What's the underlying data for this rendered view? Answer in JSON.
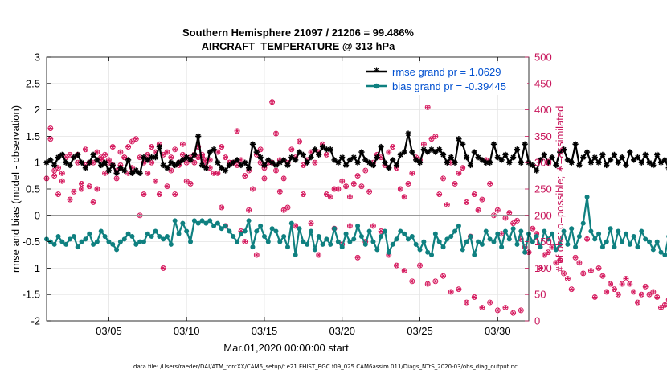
{
  "chart_data": {
    "type": "line",
    "title": "Southern Hemisphere 21097 / 21206 = 99.486%",
    "subtitle": "AIRCRAFT_TEMPERATURE @ 313 hPa",
    "xlabel": "Mar.01,2020 00:00:00 start",
    "ylabel_left": "rmse and bias (model - observation)",
    "ylabel_right": "# of obs: o=possible; ∗=assimilated",
    "footnote": "data file: /Users/raeder/DAI/ATM_forcXX/CAM6_setup/f.e21.FHIST_BGC.f09_025.CAM6assim.011/Diags_NTrS_2020-03/obs_diag_output.nc",
    "x_tick_labels": [
      "03/05",
      "03/10",
      "03/15",
      "03/20",
      "03/25",
      "03/30"
    ],
    "x_tick_days": [
      5,
      10,
      15,
      20,
      25,
      30
    ],
    "xlim": [
      1,
      32
    ],
    "ylim_left": [
      -2,
      3
    ],
    "ylim_right": [
      0,
      500
    ],
    "y_ticks_left": [
      "-2",
      "-1.5",
      "-1",
      "-0.5",
      "0",
      "0.5",
      "1",
      "1.5",
      "2",
      "2.5",
      "3"
    ],
    "y_ticks_right": [
      "0",
      "50",
      "100",
      "150",
      "200",
      "250",
      "300",
      "350",
      "400",
      "450",
      "500"
    ],
    "legend_position": "top-right",
    "colors": {
      "rmse": "#000000",
      "bias": "#0f8080",
      "obs": "#d4145a",
      "right_axis": "#c8145a",
      "legend_text": "#0050d0",
      "zero_line": "#999999"
    },
    "start_day": 1,
    "step_days": 0.25,
    "series": [
      {
        "name": "rmse grand pr = 1.0629",
        "values": [
          1.0,
          1.05,
          0.95,
          1.1,
          1.15,
          1.0,
          0.95,
          1.1,
          1.15,
          1.0,
          0.9,
          1.0,
          1.15,
          1.05,
          0.95,
          1.0,
          0.85,
          0.95,
          0.8,
          0.9,
          0.85,
          1.05,
          0.8,
          0.85,
          0.8,
          1.1,
          1.05,
          1.1,
          1.1,
          1.3,
          0.95,
          0.9,
          1.0,
          0.95,
          1.0,
          1.05,
          1.1,
          1.05,
          1.15,
          1.5,
          0.95,
          0.9,
          1.2,
          1.25,
          1.0,
          0.9,
          0.85,
          0.95,
          1.0,
          1.05,
          0.95,
          1.0,
          0.9,
          1.35,
          1.2,
          1.1,
          0.95,
          1.05,
          1.0,
          0.95,
          1.0,
          1.05,
          0.95,
          1.1,
          1.05,
          1.2,
          1.15,
          1.0,
          1.1,
          1.25,
          1.15,
          1.3,
          1.25,
          1.25,
          1.05,
          1.0,
          1.1,
          0.95,
          1.05,
          1.1,
          1.0,
          1.2,
          1.05,
          1.0,
          0.95,
          1.1,
          1.3,
          1.0,
          0.9,
          1.05,
          0.95,
          1.15,
          1.2,
          1.55,
          1.2,
          1.05,
          1.0,
          1.25,
          1.2,
          1.25,
          1.2,
          1.25,
          1.15,
          1.0,
          1.1,
          1.0,
          1.45,
          1.35,
          1.1,
          0.95,
          1.2,
          1.1,
          1.05,
          1.0,
          1.0,
          1.35,
          1.1,
          1.05,
          1.15,
          1.0,
          1.1,
          1.25,
          1.0,
          1.35,
          1.0,
          0.95,
          0.85,
          1.05,
          1.15,
          1.0,
          1.1,
          0.95,
          1.2,
          1.25,
          1.05,
          1.0,
          1.35,
          0.95,
          1.1,
          1.2,
          1.0,
          1.1,
          1.0,
          1.15,
          0.95,
          1.05,
          1.15,
          1.0,
          1.1,
          0.95,
          1.2,
          1.05,
          1.1,
          1.0,
          1.15,
          1.0,
          0.95,
          1.15,
          1.0,
          1.05,
          0.9,
          1.15,
          1.05,
          0.95,
          1.0,
          1.05,
          0.9,
          1.2,
          1.1,
          1.0,
          1.15,
          0.95,
          1.0,
          1.05,
          1.0,
          1.1,
          1.05,
          1.2,
          0.9,
          1.25,
          1.0,
          1.05,
          1.2,
          0.9,
          1.1,
          1.15,
          1.25,
          0.95,
          1.0,
          1.15,
          1.1,
          0.85,
          1.05,
          1.0,
          1.15,
          1.0,
          1.05,
          0.9,
          1.1,
          1.0,
          1.05,
          1.55
        ]
      },
      {
        "name": "bias grand pr = -0.39445",
        "values": [
          -0.45,
          -0.5,
          -0.55,
          -0.4,
          -0.5,
          -0.55,
          -0.45,
          -0.4,
          -0.6,
          -0.5,
          -0.45,
          -0.35,
          -0.55,
          -0.5,
          -0.3,
          -0.4,
          -0.5,
          -0.55,
          -0.65,
          -0.5,
          -0.45,
          -0.35,
          -0.4,
          -0.55,
          -0.5,
          -0.5,
          -0.35,
          -0.4,
          -0.3,
          -0.4,
          -0.45,
          -0.4,
          -0.55,
          -0.1,
          -0.35,
          -0.15,
          -0.3,
          -0.5,
          -0.1,
          -0.15,
          -0.1,
          -0.15,
          -0.1,
          -0.2,
          -0.15,
          -0.25,
          -0.2,
          -0.3,
          -0.4,
          -0.5,
          -0.35,
          -0.3,
          -0.1,
          -0.6,
          -0.3,
          -0.2,
          -0.4,
          -0.5,
          -0.25,
          -0.3,
          -0.5,
          -0.4,
          -0.6,
          -0.15,
          -0.75,
          -0.25,
          -0.5,
          -0.55,
          -0.3,
          -0.65,
          -0.4,
          -0.55,
          -0.45,
          -0.55,
          -0.25,
          -0.5,
          -0.6,
          -0.35,
          -0.5,
          -0.45,
          -0.2,
          -0.4,
          -0.55,
          -0.3,
          -0.5,
          -0.65,
          -0.4,
          -0.3,
          -0.7,
          -0.55,
          -0.45,
          -0.3,
          -0.35,
          -0.45,
          -0.4,
          -0.55,
          -0.65,
          -0.5,
          -0.7,
          -0.75,
          -0.35,
          -0.5,
          -0.6,
          -0.45,
          -0.4,
          -0.3,
          -0.2,
          -0.65,
          -0.5,
          -0.4,
          -0.75,
          -0.5,
          -0.55,
          -0.3,
          -0.45,
          -0.5,
          -0.35,
          -0.6,
          -0.3,
          -0.45,
          -0.25,
          -0.55,
          -0.3,
          -0.7,
          -0.35,
          -0.5,
          -0.4,
          -0.6,
          -0.3,
          -0.45,
          -0.35,
          -0.65,
          -0.55,
          -0.3,
          -0.55,
          -0.25,
          -0.6,
          -0.4,
          -0.15,
          0.35,
          -0.3,
          -0.45,
          -0.35,
          -0.6,
          -0.5,
          -0.25,
          -0.6,
          -0.3,
          -0.5,
          -0.35,
          -0.55,
          -0.4,
          -0.6,
          -0.3,
          -0.45,
          -0.5,
          -0.65,
          -0.5,
          -0.7,
          -0.75,
          -0.4,
          -0.1,
          -0.35,
          -0.45,
          -0.15,
          -0.55,
          -0.3,
          -0.45,
          -0.5,
          -0.6,
          -0.35,
          -0.5,
          -0.3,
          -0.45,
          -0.2,
          -0.5,
          -0.35,
          -0.25,
          -0.35,
          -0.5,
          -0.3,
          -0.45,
          -0.55,
          -0.45,
          -0.3,
          -0.4,
          -0.8,
          -0.3,
          -0.5,
          -0.55,
          -0.6,
          -0.45,
          0.65,
          -0.5,
          -0.3,
          -0.55,
          -0.2,
          -0.45,
          -0.5,
          -0.6,
          -0.7,
          -0.5,
          -0.4,
          -0.2,
          -0.45,
          -0.3,
          -0.4,
          -0.7,
          -0.45,
          -0.55,
          -0.55,
          -1.25
        ]
      }
    ],
    "obs_counts": [
      270,
      365,
      285,
      290,
      280,
      310,
      315,
      245,
      300,
      260,
      295,
      255,
      225,
      250,
      310,
      315,
      305,
      295,
      270,
      320,
      310,
      330,
      340,
      345,
      310,
      300,
      315,
      330,
      320,
      335,
      315,
      320,
      310,
      325,
      295,
      335,
      300,
      310,
      315,
      330,
      310,
      305,
      290,
      280,
      320,
      330,
      310,
      300,
      300,
      295,
      305,
      275,
      285,
      250,
      315,
      325,
      290,
      300,
      300,
      285,
      305,
      270,
      300,
      325,
      310,
      340,
      295,
      305,
      320,
      300,
      320,
      335,
      315,
      235,
      250,
      250,
      265,
      255,
      235,
      260,
      275,
      255,
      285,
      245,
      300,
      315,
      310,
      295,
      320,
      330,
      290,
      250,
      235,
      260,
      280,
      310,
      305,
      335,
      405,
      345,
      350,
      240,
      270,
      220,
      300,
      260,
      280,
      290,
      225,
      160,
      240,
      210,
      230,
      305,
      260,
      200,
      210,
      165,
      195,
      205,
      185,
      190,
      155,
      140,
      130,
      175,
      165,
      100,
      125,
      130,
      140,
      110,
      115,
      90,
      80,
      60,
      120,
      110,
      90,
      155,
      95,
      45,
      100,
      85,
      55,
      70,
      60,
      50,
      70,
      80,
      70,
      55,
      35,
      50,
      65,
      50,
      55,
      45,
      25,
      30,
      40,
      60,
      20,
      30,
      45,
      40,
      20,
      30,
      15,
      5,
      25,
      10,
      0,
      20,
      30,
      15,
      25,
      35,
      10,
      20,
      5,
      15,
      25,
      35,
      20,
      10,
      30,
      25,
      15,
      40,
      5,
      20,
      10,
      25,
      30,
      15,
      5,
      30,
      20,
      10,
      25,
      15,
      35,
      20,
      5,
      0
    ],
    "obs_scatter": [
      {
        "d": 1.25,
        "v": 345
      },
      {
        "d": 1.5,
        "v": 275
      },
      {
        "d": 1.75,
        "v": 240
      },
      {
        "d": 2.0,
        "v": 265
      },
      {
        "d": 2.5,
        "v": 230
      },
      {
        "d": 3.0,
        "v": 315
      },
      {
        "d": 3.25,
        "v": 250
      },
      {
        "d": 3.5,
        "v": 325
      },
      {
        "d": 3.75,
        "v": 300
      },
      {
        "d": 4.0,
        "v": 300
      },
      {
        "d": 4.25,
        "v": 320
      },
      {
        "d": 4.5,
        "v": 305
      },
      {
        "d": 4.75,
        "v": 280
      },
      {
        "d": 5.0,
        "v": 300
      },
      {
        "d": 5.25,
        "v": 330
      },
      {
        "d": 5.5,
        "v": 285
      },
      {
        "d": 5.75,
        "v": 295
      },
      {
        "d": 6.0,
        "v": 310
      },
      {
        "d": 6.25,
        "v": 280
      },
      {
        "d": 6.5,
        "v": 290
      },
      {
        "d": 7.0,
        "v": 200
      },
      {
        "d": 7.25,
        "v": 240
      },
      {
        "d": 7.5,
        "v": 280
      },
      {
        "d": 7.75,
        "v": 300
      },
      {
        "d": 8.0,
        "v": 265
      },
      {
        "d": 8.25,
        "v": 240
      },
      {
        "d": 8.5,
        "v": 100
      },
      {
        "d": 8.75,
        "v": 255
      },
      {
        "d": 9.0,
        "v": 285
      },
      {
        "d": 9.25,
        "v": 240
      },
      {
        "d": 9.5,
        "v": 300
      },
      {
        "d": 9.75,
        "v": 315
      },
      {
        "d": 10.0,
        "v": 265
      },
      {
        "d": 10.25,
        "v": 260
      },
      {
        "d": 10.5,
        "v": 300
      },
      {
        "d": 10.75,
        "v": 310
      },
      {
        "d": 11.0,
        "v": 315
      },
      {
        "d": 11.25,
        "v": 300
      },
      {
        "d": 11.5,
        "v": 305
      },
      {
        "d": 12.0,
        "v": 280
      },
      {
        "d": 12.25,
        "v": 215
      },
      {
        "d": 12.5,
        "v": 180
      },
      {
        "d": 12.75,
        "v": 300
      },
      {
        "d": 13.25,
        "v": 360
      },
      {
        "d": 13.5,
        "v": 170
      },
      {
        "d": 13.75,
        "v": 150
      },
      {
        "d": 14.0,
        "v": 210
      },
      {
        "d": 14.5,
        "v": 125
      },
      {
        "d": 14.75,
        "v": 300
      },
      {
        "d": 15.0,
        "v": 270
      },
      {
        "d": 15.5,
        "v": 415
      },
      {
        "d": 15.75,
        "v": 355
      },
      {
        "d": 16.0,
        "v": 245
      },
      {
        "d": 16.25,
        "v": 210
      },
      {
        "d": 16.5,
        "v": 215
      },
      {
        "d": 17.0,
        "v": 180
      },
      {
        "d": 17.5,
        "v": 240
      },
      {
        "d": 18.0,
        "v": 185
      },
      {
        "d": 18.5,
        "v": 125
      },
      {
        "d": 19.0,
        "v": 240
      },
      {
        "d": 19.5,
        "v": 175
      },
      {
        "d": 20.0,
        "v": 145
      },
      {
        "d": 20.5,
        "v": 180
      },
      {
        "d": 21.0,
        "v": 120
      },
      {
        "d": 21.5,
        "v": 150
      },
      {
        "d": 22.0,
        "v": 180
      },
      {
        "d": 22.5,
        "v": 170
      },
      {
        "d": 23.0,
        "v": 125
      },
      {
        "d": 23.5,
        "v": 105
      },
      {
        "d": 24.0,
        "v": 95
      },
      {
        "d": 24.5,
        "v": 75
      },
      {
        "d": 25.0,
        "v": 105
      },
      {
        "d": 25.5,
        "v": 70
      },
      {
        "d": 26.0,
        "v": 75
      },
      {
        "d": 26.5,
        "v": 85
      },
      {
        "d": 27.0,
        "v": 55
      },
      {
        "d": 27.5,
        "v": 60
      },
      {
        "d": 28.0,
        "v": 35
      },
      {
        "d": 28.5,
        "v": 45
      },
      {
        "d": 29.0,
        "v": 25
      },
      {
        "d": 29.5,
        "v": 35
      },
      {
        "d": 30.0,
        "v": 20
      },
      {
        "d": 30.5,
        "v": 25
      },
      {
        "d": 31.0,
        "v": 15
      },
      {
        "d": 31.5,
        "v": 20
      }
    ]
  }
}
